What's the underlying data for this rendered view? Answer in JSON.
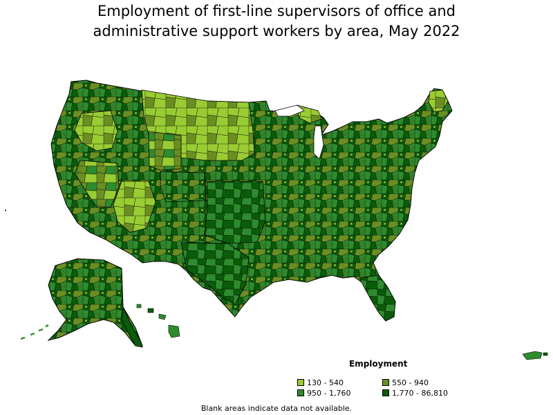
{
  "title_lines": [
    "Employment of first-line supervisors of office and",
    "administrative support workers by area, May 2022"
  ],
  "legend": {
    "title": "Employment",
    "items": [
      {
        "label": "130 - 540",
        "color": "#99cc33"
      },
      {
        "label": "550 - 940",
        "color": "#6b8e23"
      },
      {
        "label": "950 - 1,760",
        "color": "#2e8b2e"
      },
      {
        "label": "1,770 - 86,810",
        "color": "#0a5c0a"
      }
    ]
  },
  "footnote": "Blank areas indicate data not available.",
  "map": {
    "outline_color": "#000000"
  }
}
